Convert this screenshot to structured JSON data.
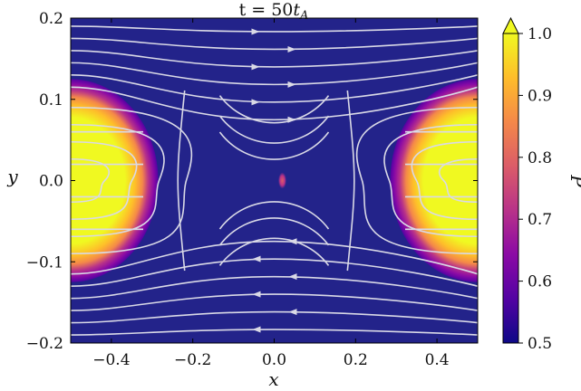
{
  "chart_data": {
    "type": "heatmap",
    "title": {
      "prefix": "t = 50",
      "var": "t",
      "sub": "A"
    },
    "xlabel": "x",
    "ylabel": "y",
    "xlim": [
      -0.5,
      0.5
    ],
    "ylim": [
      -0.2,
      0.2
    ],
    "xticks": [
      -0.4,
      -0.2,
      0.0,
      0.2,
      0.4
    ],
    "xtick_labels": [
      "−0.4",
      "−0.2",
      "0.0",
      "0.2",
      "0.4"
    ],
    "yticks": [
      -0.2,
      -0.1,
      0.0,
      0.1,
      0.2
    ],
    "ytick_labels": [
      "−0.2",
      "−0.1",
      "0.0",
      "0.1",
      "0.2"
    ],
    "colorbar": {
      "label": "P",
      "min": 0.5,
      "max": 1.0,
      "extend": "max",
      "ticks": [
        0.5,
        0.6,
        0.7,
        0.8,
        0.9,
        1.0
      ],
      "tick_labels": [
        "0.5",
        "0.6",
        "0.7",
        "0.8",
        "0.9",
        "1.0"
      ],
      "colormap": [
        "#0d0887",
        "#5302a3",
        "#8b0aa5",
        "#b83289",
        "#db5c68",
        "#f48849",
        "#febd2a",
        "#f0f921"
      ]
    },
    "background_color": "#23238a",
    "regions": [
      {
        "name": "left lobe",
        "center_x": -0.5,
        "center_y": 0.0,
        "half_width_x": 0.215,
        "half_width_y": 0.125,
        "max_value": 1.0
      },
      {
        "name": "right lobe",
        "center_x": 0.5,
        "center_y": 0.0,
        "half_width_x": 0.215,
        "half_width_y": 0.125,
        "max_value": 1.0
      },
      {
        "name": "center spot",
        "center_x": 0.02,
        "center_y": 0.0,
        "half_width_x": 0.01,
        "half_width_y": 0.01,
        "max_value": 0.7
      }
    ],
    "streamlines": {
      "color": "#d9d9e6",
      "top_y": [
        0.19,
        0.175,
        0.16,
        0.145,
        0.13,
        0.115
      ],
      "bottom_y": [
        -0.19,
        -0.175,
        -0.16,
        -0.145,
        -0.13,
        -0.115
      ],
      "middle_y": [
        0.06,
        0.035,
        0.015,
        -0.015,
        -0.035,
        -0.06
      ],
      "lobe_rings": [
        0.25,
        0.45,
        0.65,
        0.85
      ]
    }
  }
}
